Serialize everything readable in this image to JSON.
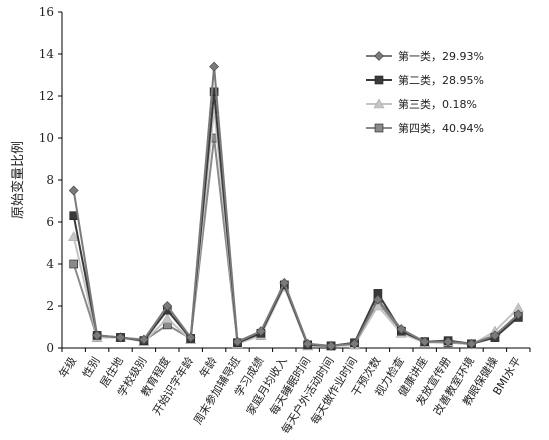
{
  "chart_data": {
    "type": "line",
    "title": "",
    "xlabel": "",
    "ylabel": "原始变量比例",
    "ylim": [
      0,
      16
    ],
    "yticks": [
      0,
      2,
      4,
      6,
      8,
      10,
      12,
      14,
      16
    ],
    "grid": false,
    "legend_position": "top-right",
    "categories": [
      "年级",
      "性别",
      "居住地",
      "学校级别",
      "教育程度",
      "开始识字年龄",
      "年龄",
      "周末参加辅导班",
      "学习成绩",
      "家庭月均收入",
      "每天睡眠时间",
      "每天户外活动时间",
      "每天做作业时间",
      "干预次数",
      "视力检查",
      "健康讲座",
      "发放宣传册",
      "改善教室环境",
      "教眼保健操",
      "BMI水平"
    ],
    "series": [
      {
        "name": "第一类，29.93%",
        "marker": "diamond",
        "color": "#7a7a7a",
        "values": [
          7.5,
          0.6,
          0.5,
          0.4,
          2.0,
          0.5,
          13.4,
          0.3,
          0.8,
          3.1,
          0.2,
          0.1,
          0.2,
          2.3,
          0.9,
          0.3,
          0.3,
          0.2,
          0.6,
          1.6
        ]
      },
      {
        "name": "第二类，28.95%",
        "marker": "square",
        "color": "#3a3a3a",
        "values": [
          6.3,
          0.6,
          0.5,
          0.35,
          1.8,
          0.45,
          12.2,
          0.25,
          0.7,
          3.0,
          0.15,
          0.1,
          0.25,
          2.6,
          0.8,
          0.3,
          0.35,
          0.2,
          0.5,
          1.5
        ]
      },
      {
        "name": "第三类，0.18%",
        "marker": "triangle",
        "color": "#c4c4c4",
        "values": [
          5.3,
          0.5,
          0.5,
          0.3,
          1.4,
          0.4,
          11.4,
          0.2,
          0.6,
          2.9,
          0.1,
          0.1,
          0.15,
          2.0,
          0.7,
          0.25,
          0.3,
          0.15,
          0.8,
          1.9
        ]
      },
      {
        "name": "第四类，40.94%",
        "marker": "square",
        "color": "#8a8a8a",
        "values": [
          4.0,
          0.5,
          0.5,
          0.35,
          1.1,
          0.45,
          10.0,
          0.25,
          0.6,
          3.0,
          0.15,
          0.1,
          0.15,
          2.2,
          0.8,
          0.3,
          0.25,
          0.2,
          0.5,
          1.45
        ]
      }
    ]
  }
}
